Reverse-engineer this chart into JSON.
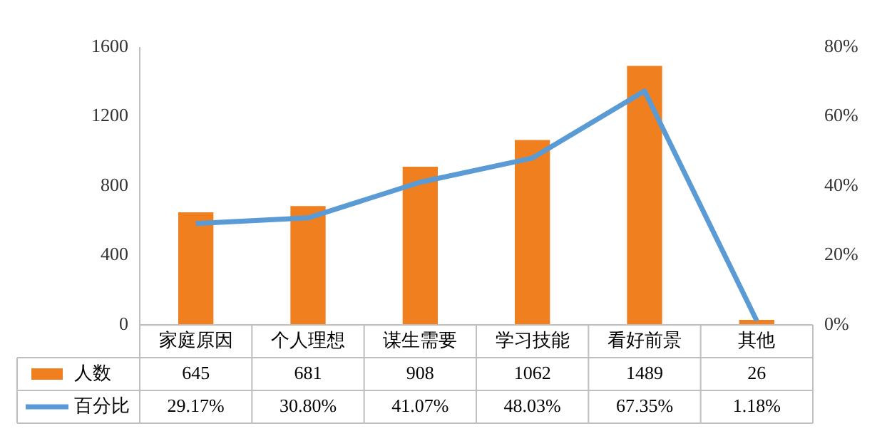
{
  "chart_data": {
    "type": "bar",
    "categories": [
      "家庭原因",
      "个人理想",
      "谋生需要",
      "学习技能",
      "看好前景",
      "其他"
    ],
    "series": [
      {
        "name": "人数",
        "color": "#f07f1f",
        "values": [
          645,
          681,
          908,
          1062,
          1489,
          26
        ],
        "value_labels": [
          "645",
          "681",
          "908",
          "1062",
          "1489",
          "26"
        ]
      },
      {
        "name": "百分比",
        "type": "line",
        "axis": "y2",
        "color": "#5b9bd5",
        "values": [
          29.17,
          30.8,
          41.07,
          48.03,
          67.35,
          1.18
        ],
        "value_labels": [
          "29.17%",
          "30.80%",
          "41.07%",
          "48.03%",
          "67.35%",
          "1.18%"
        ]
      }
    ],
    "ylim": [
      0,
      1600
    ],
    "yticks": [
      0,
      400,
      800,
      1200,
      1600
    ],
    "y2lim": [
      0,
      80
    ],
    "y2ticks": [
      {
        "value": 0,
        "label": "0%"
      },
      {
        "value": 20,
        "label": "20%"
      },
      {
        "value": 40,
        "label": "40%"
      },
      {
        "value": 60,
        "label": "60%"
      },
      {
        "value": 80,
        "label": "80%"
      }
    ],
    "grid": false,
    "legend": "bottom",
    "marker": "none",
    "line_style": "solid"
  }
}
